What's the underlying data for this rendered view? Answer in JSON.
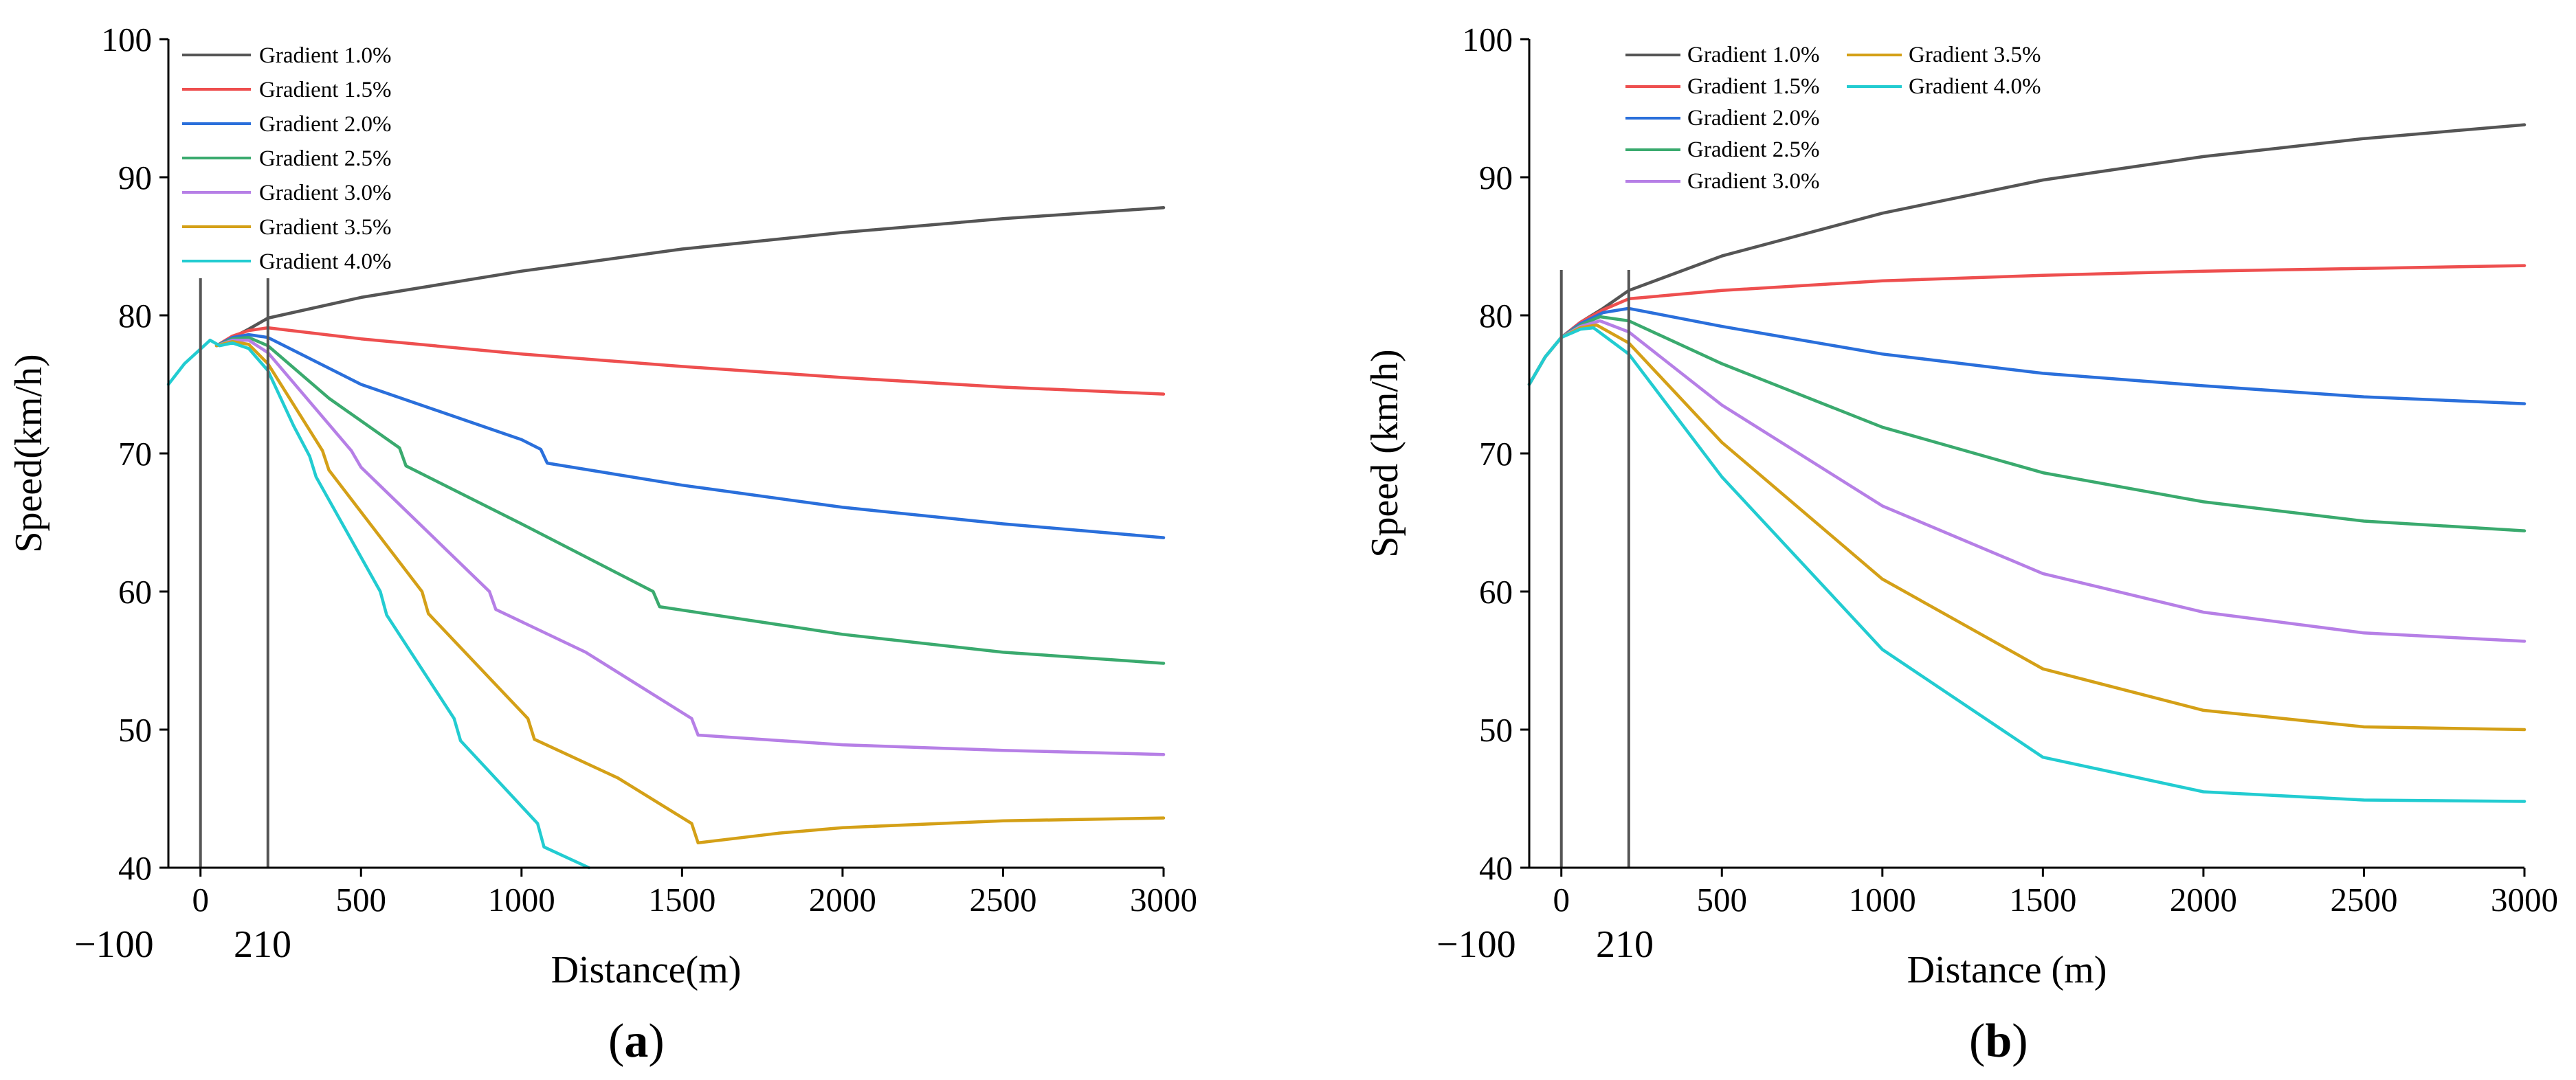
{
  "colors": {
    "grad_1_0": "#555555",
    "grad_1_5": "#ee4f4f",
    "grad_2_0": "#2a6fdb",
    "grad_2_5": "#3aaa6e",
    "grad_3_0": "#b67fe6",
    "grad_3_5": "#d4a017",
    "grad_4_0": "#22ccd1",
    "axis": "#000000",
    "marker": "#555555"
  },
  "chart_data": [
    {
      "type": "line",
      "panel": "a",
      "label_open": "(",
      "label_letter": "a",
      "label_close": ")",
      "xlabel": "Distance(m)",
      "ylabel": "Speed(km/h)",
      "xlim": [
        -100,
        3000
      ],
      "ylim": [
        40,
        100
      ],
      "xticks": [
        0,
        500,
        1000,
        1500,
        2000,
        2500,
        3000
      ],
      "yticks": [
        40,
        50,
        60,
        70,
        80,
        90,
        100
      ],
      "markers": [
        0,
        210
      ],
      "extra_labels": [
        "−100",
        "210"
      ],
      "legend_position": "top-left",
      "series": [
        {
          "name": "Gradient 1.0%",
          "color_key": "grad_1_0",
          "points": [
            [
              50,
              77.8
            ],
            [
              100,
              78.4
            ],
            [
              150,
              79.0
            ],
            [
              210,
              79.8
            ],
            [
              500,
              81.3
            ],
            [
              1000,
              83.2
            ],
            [
              1500,
              84.8
            ],
            [
              2000,
              86.0
            ],
            [
              2500,
              87.0
            ],
            [
              3000,
              87.8
            ]
          ]
        },
        {
          "name": "Gradient 1.5%",
          "color_key": "grad_1_5",
          "points": [
            [
              50,
              77.8
            ],
            [
              100,
              78.5
            ],
            [
              150,
              78.9
            ],
            [
              210,
              79.1
            ],
            [
              500,
              78.3
            ],
            [
              1000,
              77.2
            ],
            [
              1500,
              76.3
            ],
            [
              2000,
              75.5
            ],
            [
              2500,
              74.8
            ],
            [
              3000,
              74.3
            ]
          ]
        },
        {
          "name": "Gradient 2.0%",
          "color_key": "grad_2_0",
          "points": [
            [
              50,
              77.8
            ],
            [
              100,
              78.4
            ],
            [
              150,
              78.6
            ],
            [
              210,
              78.4
            ],
            [
              500,
              75.0
            ],
            [
              1000,
              71.0
            ],
            [
              1060,
              70.3
            ],
            [
              1080,
              69.3
            ],
            [
              1500,
              67.7
            ],
            [
              2000,
              66.1
            ],
            [
              2500,
              64.9
            ],
            [
              3000,
              63.9
            ]
          ]
        },
        {
          "name": "Gradient 2.5%",
          "color_key": "grad_2_5",
          "points": [
            [
              50,
              77.8
            ],
            [
              100,
              78.3
            ],
            [
              150,
              78.4
            ],
            [
              210,
              77.8
            ],
            [
              400,
              74.0
            ],
            [
              620,
              70.4
            ],
            [
              640,
              69.1
            ],
            [
              1000,
              64.9
            ],
            [
              1410,
              60.0
            ],
            [
              1430,
              58.9
            ],
            [
              2000,
              56.9
            ],
            [
              2500,
              55.6
            ],
            [
              3000,
              54.8
            ]
          ]
        },
        {
          "name": "Gradient 3.0%",
          "color_key": "grad_3_0",
          "points": [
            [
              50,
              77.8
            ],
            [
              100,
              78.2
            ],
            [
              150,
              78.2
            ],
            [
              210,
              77.3
            ],
            [
              470,
              70.2
            ],
            [
              500,
              69.0
            ],
            [
              900,
              60.0
            ],
            [
              920,
              58.7
            ],
            [
              1200,
              55.6
            ],
            [
              1530,
              50.8
            ],
            [
              1550,
              49.6
            ],
            [
              2000,
              48.9
            ],
            [
              2500,
              48.5
            ],
            [
              3000,
              48.2
            ]
          ]
        },
        {
          "name": "Gradient 3.5%",
          "color_key": "grad_3_5",
          "points": [
            [
              50,
              77.8
            ],
            [
              100,
              78.1
            ],
            [
              150,
              77.9
            ],
            [
              210,
              76.5
            ],
            [
              380,
              70.2
            ],
            [
              400,
              68.8
            ],
            [
              690,
              60.0
            ],
            [
              710,
              58.4
            ],
            [
              1020,
              50.8
            ],
            [
              1040,
              49.3
            ],
            [
              1300,
              46.5
            ],
            [
              1530,
              43.2
            ],
            [
              1550,
              41.8
            ],
            [
              1800,
              42.5
            ],
            [
              2000,
              42.9
            ],
            [
              2500,
              43.4
            ],
            [
              3000,
              43.6
            ]
          ]
        },
        {
          "name": "Gradient 4.0%",
          "color_key": "grad_4_0",
          "points": [
            [
              -100,
              75.0
            ],
            [
              -50,
              76.5
            ],
            [
              30,
              78.2
            ],
            [
              60,
              77.8
            ],
            [
              100,
              78.0
            ],
            [
              150,
              77.6
            ],
            [
              210,
              76.0
            ],
            [
              290,
              72.0
            ],
            [
              340,
              69.8
            ],
            [
              360,
              68.3
            ],
            [
              560,
              60.0
            ],
            [
              580,
              58.3
            ],
            [
              790,
              50.8
            ],
            [
              810,
              49.2
            ],
            [
              1050,
              43.2
            ],
            [
              1070,
              41.5
            ],
            [
              1210,
              40.0
            ]
          ]
        }
      ]
    },
    {
      "type": "line",
      "panel": "b",
      "label_open": "(",
      "label_letter": "b",
      "label_close": ")",
      "xlabel": "Distance (m)",
      "ylabel": "Speed (km/h)",
      "xlim": [
        -100,
        3000
      ],
      "ylim": [
        40,
        100
      ],
      "xticks": [
        0,
        500,
        1000,
        1500,
        2000,
        2500,
        3000
      ],
      "yticks": [
        40,
        50,
        60,
        70,
        80,
        90,
        100
      ],
      "markers": [
        0,
        210
      ],
      "extra_labels": [
        "−100",
        "210"
      ],
      "legend_position": "top-left",
      "series": [
        {
          "name": "Gradient 1.0%",
          "color_key": "grad_1_0",
          "points": [
            [
              -100,
              75.0
            ],
            [
              -50,
              77.0
            ],
            [
              0,
              78.4
            ],
            [
              60,
              79.5
            ],
            [
              130,
              80.5
            ],
            [
              210,
              81.8
            ],
            [
              500,
              84.3
            ],
            [
              1000,
              87.4
            ],
            [
              1500,
              89.8
            ],
            [
              2000,
              91.5
            ],
            [
              2500,
              92.8
            ],
            [
              3000,
              93.8
            ]
          ]
        },
        {
          "name": "Gradient 1.5%",
          "color_key": "grad_1_5",
          "points": [
            [
              -100,
              75.0
            ],
            [
              -50,
              77.0
            ],
            [
              0,
              78.4
            ],
            [
              60,
              79.5
            ],
            [
              130,
              80.4
            ],
            [
              210,
              81.2
            ],
            [
              500,
              81.8
            ],
            [
              1000,
              82.5
            ],
            [
              1500,
              82.9
            ],
            [
              2000,
              83.2
            ],
            [
              2500,
              83.4
            ],
            [
              3000,
              83.6
            ]
          ]
        },
        {
          "name": "Gradient 2.0%",
          "color_key": "grad_2_0",
          "points": [
            [
              -100,
              75.0
            ],
            [
              -50,
              77.0
            ],
            [
              0,
              78.4
            ],
            [
              60,
              79.4
            ],
            [
              130,
              80.2
            ],
            [
              210,
              80.5
            ],
            [
              500,
              79.2
            ],
            [
              1000,
              77.2
            ],
            [
              1500,
              75.8
            ],
            [
              2000,
              74.9
            ],
            [
              2500,
              74.1
            ],
            [
              3000,
              73.6
            ]
          ]
        },
        {
          "name": "Gradient 2.5%",
          "color_key": "grad_2_5",
          "points": [
            [
              -100,
              75.0
            ],
            [
              -50,
              77.0
            ],
            [
              0,
              78.4
            ],
            [
              60,
              79.3
            ],
            [
              120,
              79.9
            ],
            [
              210,
              79.6
            ],
            [
              500,
              76.5
            ],
            [
              1000,
              71.9
            ],
            [
              1500,
              68.6
            ],
            [
              2000,
              66.5
            ],
            [
              2500,
              65.1
            ],
            [
              3000,
              64.4
            ]
          ]
        },
        {
          "name": "Gradient 3.0%",
          "color_key": "grad_3_0",
          "points": [
            [
              -100,
              75.0
            ],
            [
              -50,
              77.0
            ],
            [
              0,
              78.4
            ],
            [
              60,
              79.2
            ],
            [
              120,
              79.6
            ],
            [
              210,
              78.8
            ],
            [
              500,
              73.5
            ],
            [
              1000,
              66.2
            ],
            [
              1500,
              61.3
            ],
            [
              2000,
              58.5
            ],
            [
              2500,
              57.0
            ],
            [
              3000,
              56.4
            ]
          ]
        },
        {
          "name": "Gradient 3.5%",
          "color_key": "grad_3_5",
          "points": [
            [
              -100,
              75.0
            ],
            [
              -50,
              77.0
            ],
            [
              0,
              78.4
            ],
            [
              60,
              79.1
            ],
            [
              110,
              79.3
            ],
            [
              210,
              78.0
            ],
            [
              500,
              70.8
            ],
            [
              1000,
              60.9
            ],
            [
              1500,
              54.4
            ],
            [
              2000,
              51.4
            ],
            [
              2500,
              50.2
            ],
            [
              3000,
              50.0
            ]
          ]
        },
        {
          "name": "Gradient 4.0%",
          "color_key": "grad_4_0",
          "points": [
            [
              -100,
              75.0
            ],
            [
              -50,
              77.0
            ],
            [
              0,
              78.4
            ],
            [
              60,
              79.0
            ],
            [
              100,
              79.1
            ],
            [
              210,
              77.2
            ],
            [
              500,
              68.3
            ],
            [
              1000,
              55.8
            ],
            [
              1500,
              48.0
            ],
            [
              2000,
              45.5
            ],
            [
              2500,
              44.9
            ],
            [
              3000,
              44.8
            ]
          ]
        }
      ]
    }
  ]
}
